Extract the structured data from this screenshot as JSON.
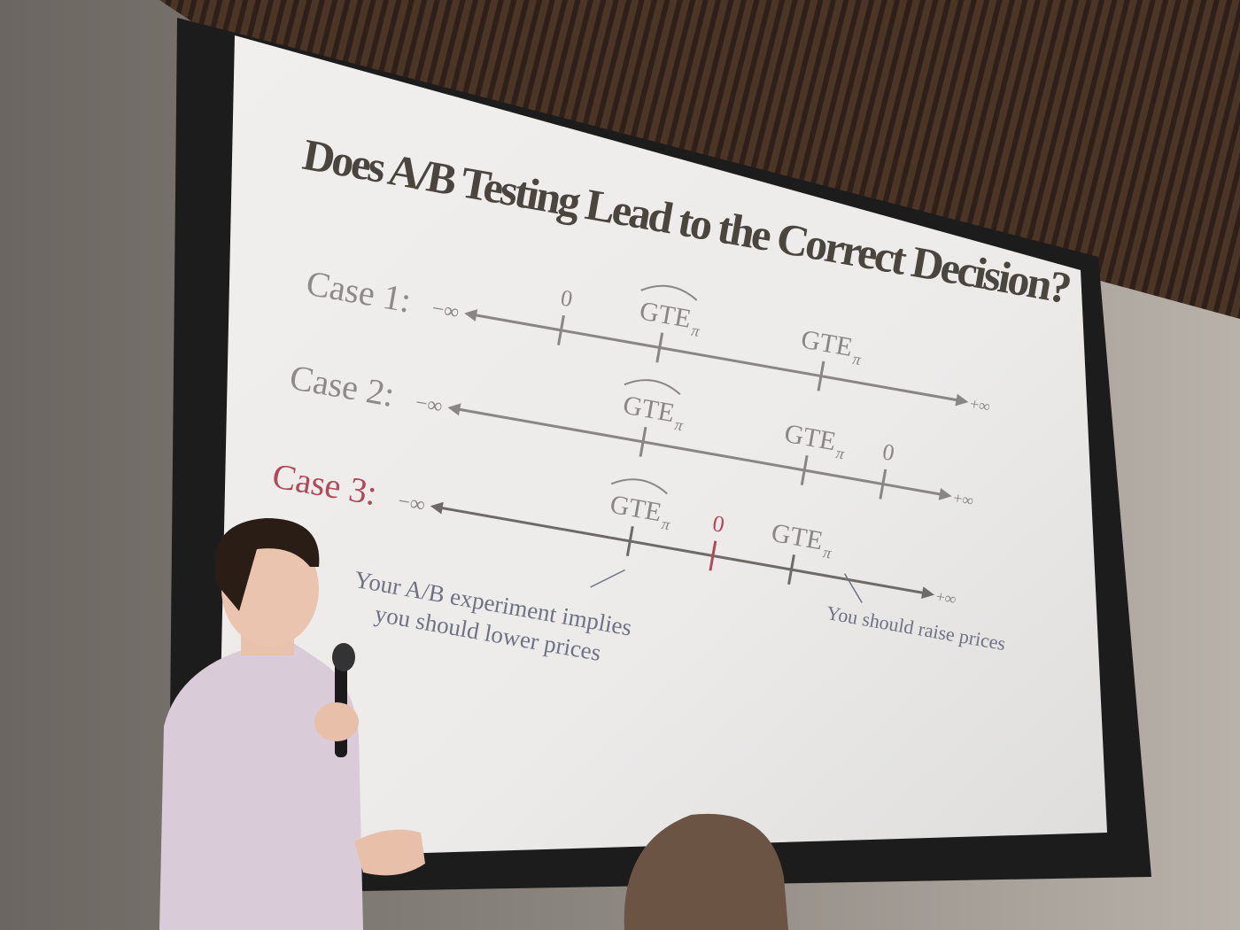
{
  "slide": {
    "title": "Does A/B Testing Lead to the Correct Decision?",
    "cases": [
      {
        "label": "Case 1:",
        "color": "#8e8a88",
        "left": "−∞",
        "right": "+∞",
        "ticks": [
          {
            "text": "0"
          },
          {
            "text": "GTE",
            "subscript": "π",
            "hat": true
          },
          {
            "text": "GTE",
            "subscript": "π"
          }
        ]
      },
      {
        "label": "Case 2:",
        "color": "#8e8a88",
        "left": "−∞",
        "right": "+∞",
        "ticks": [
          {
            "text": "GTE",
            "subscript": "π",
            "hat": true
          },
          {
            "text": "GTE",
            "subscript": "π"
          },
          {
            "text": "0"
          }
        ]
      },
      {
        "label": "Case 3:",
        "color": "#b04a58",
        "left": "−∞",
        "right": "+∞",
        "ticks": [
          {
            "text": "GTE",
            "subscript": "π",
            "hat": true
          },
          {
            "text": "0",
            "color": "#b04a58"
          },
          {
            "text": "GTE",
            "subscript": "π"
          }
        ]
      }
    ],
    "annotations": [
      {
        "lines": [
          "Your A/B experiment implies",
          "you should lower prices"
        ]
      },
      {
        "lines": [
          "You should raise prices"
        ]
      }
    ]
  }
}
